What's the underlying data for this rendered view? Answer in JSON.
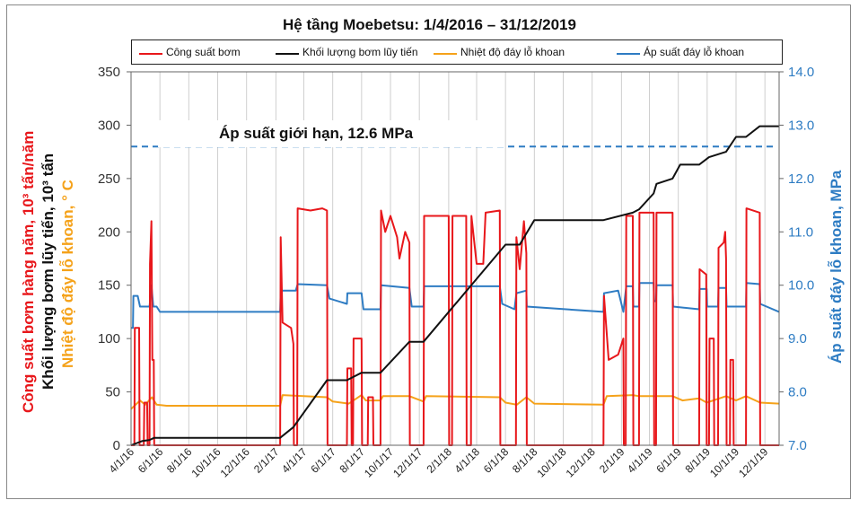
{
  "title": "Hệ tầng Moebetsu: 1/4/2016 – 31/12/2019",
  "annotation": "Áp suất giới hạn, 12.6 MPa",
  "left_axis_labels": [
    {
      "text": "Công suất bơm hàng năm, 10³ tấn/năm",
      "color": "#e8171b"
    },
    {
      "text": "Khối lượng bơm lũy tiến, 10³ tấn",
      "color": "#111111"
    },
    {
      "text": "Nhiệt độ đáy lỗ khoan, ° C",
      "color": "#f5a21a"
    }
  ],
  "right_axis_label": {
    "text": "Áp suất đáy lỗ khoan, MPa",
    "color": "#2e7cc3"
  },
  "legend": [
    {
      "label": "Công suất bơm",
      "color": "#e8171b"
    },
    {
      "label": "Khối lượng bơm lũy tiến",
      "color": "#111111"
    },
    {
      "label": "Nhiệt độ đáy lỗ khoan",
      "color": "#f5a21a"
    },
    {
      "label": "Áp suất đáy lỗ khoan",
      "color": "#2e7cc3"
    }
  ],
  "chart_data": {
    "type": "line",
    "title": "Hệ tầng Moebetsu: 1/4/2016 – 31/12/2019",
    "x_ticks": [
      "4/1/16",
      "6/1/16",
      "8/1/16",
      "10/1/16",
      "12/1/16",
      "2/1/17",
      "4/1/17",
      "6/1/17",
      "8/1/17",
      "10/1/17",
      "12/1/17",
      "2/1/18",
      "4/1/18",
      "6/1/18",
      "8/1/18",
      "10/1/18",
      "12/1/18",
      "2/1/19",
      "4/1/19",
      "6/1/19",
      "8/1/19",
      "10/1/19",
      "12/1/19"
    ],
    "xlim": [
      "2016-04-01",
      "2019-12-31"
    ],
    "y_left": {
      "ticks": [
        0,
        50,
        100,
        150,
        200,
        250,
        300,
        350
      ],
      "ylim": [
        0,
        350
      ]
    },
    "y_right": {
      "ticks": [
        "7.0",
        "8.0",
        "9.0",
        "10.0",
        "11.0",
        "12.0",
        "13.0",
        "14.0"
      ],
      "ylim": [
        7,
        14
      ]
    },
    "grid": "vertical",
    "limit_line": {
      "value": 12.6,
      "axis": "right",
      "style": "dashed",
      "color": "#2e7cc3"
    },
    "series": [
      {
        "name": "Công suất bơm",
        "color": "#e8171b",
        "axis": "left",
        "points": [
          [
            "2016-04-01",
            0
          ],
          [
            "2016-04-08",
            0
          ],
          [
            "2016-04-09",
            110
          ],
          [
            "2016-04-18",
            110
          ],
          [
            "2016-04-19",
            0
          ],
          [
            "2016-04-28",
            0
          ],
          [
            "2016-04-29",
            40
          ],
          [
            "2016-05-05",
            40
          ],
          [
            "2016-05-06",
            0
          ],
          [
            "2016-05-10",
            0
          ],
          [
            "2016-05-11",
            170
          ],
          [
            "2016-05-14",
            210
          ],
          [
            "2016-05-16",
            80
          ],
          [
            "2016-05-19",
            80
          ],
          [
            "2016-05-20",
            0
          ],
          [
            "2017-02-10",
            0
          ],
          [
            "2017-02-11",
            195
          ],
          [
            "2017-02-15",
            115
          ],
          [
            "2017-03-05",
            110
          ],
          [
            "2017-03-10",
            95
          ],
          [
            "2017-03-11",
            0
          ],
          [
            "2017-03-18",
            0
          ],
          [
            "2017-03-19",
            222
          ],
          [
            "2017-04-15",
            220
          ],
          [
            "2017-05-10",
            222
          ],
          [
            "2017-05-20",
            220
          ],
          [
            "2017-05-21",
            0
          ],
          [
            "2017-07-01",
            0
          ],
          [
            "2017-07-02",
            72
          ],
          [
            "2017-07-10",
            72
          ],
          [
            "2017-07-11",
            0
          ],
          [
            "2017-07-14",
            0
          ],
          [
            "2017-07-15",
            100
          ],
          [
            "2017-08-01",
            100
          ],
          [
            "2017-08-02",
            0
          ],
          [
            "2017-08-14",
            0
          ],
          [
            "2017-08-15",
            45
          ],
          [
            "2017-08-25",
            45
          ],
          [
            "2017-08-26",
            0
          ],
          [
            "2017-09-10",
            0
          ],
          [
            "2017-09-11",
            220
          ],
          [
            "2017-09-20",
            200
          ],
          [
            "2017-10-01",
            215
          ],
          [
            "2017-10-15",
            195
          ],
          [
            "2017-10-20",
            175
          ],
          [
            "2017-11-01",
            200
          ],
          [
            "2017-11-10",
            190
          ],
          [
            "2017-11-11",
            0
          ],
          [
            "2017-12-10",
            0
          ],
          [
            "2017-12-11",
            215
          ],
          [
            "2018-01-15",
            215
          ],
          [
            "2018-02-01",
            215
          ],
          [
            "2018-02-02",
            0
          ],
          [
            "2018-02-08",
            0
          ],
          [
            "2018-02-09",
            215
          ],
          [
            "2018-03-10",
            215
          ],
          [
            "2018-03-11",
            0
          ],
          [
            "2018-03-20",
            0
          ],
          [
            "2018-03-21",
            215
          ],
          [
            "2018-04-01",
            170
          ],
          [
            "2018-04-15",
            170
          ],
          [
            "2018-04-20",
            218
          ],
          [
            "2018-05-20",
            220
          ],
          [
            "2018-05-21",
            0
          ],
          [
            "2018-06-23",
            0
          ],
          [
            "2018-06-24",
            195
          ],
          [
            "2018-07-01",
            165
          ],
          [
            "2018-07-10",
            210
          ],
          [
            "2018-07-15",
            180
          ],
          [
            "2018-07-16",
            0
          ],
          [
            "2018-12-25",
            0
          ],
          [
            "2018-12-26",
            140
          ],
          [
            "2019-01-05",
            80
          ],
          [
            "2019-01-25",
            85
          ],
          [
            "2019-02-05",
            100
          ],
          [
            "2019-02-06",
            0
          ],
          [
            "2019-02-10",
            0
          ],
          [
            "2019-02-11",
            215
          ],
          [
            "2019-02-25",
            215
          ],
          [
            "2019-02-26",
            0
          ],
          [
            "2019-03-10",
            0
          ],
          [
            "2019-03-11",
            218
          ],
          [
            "2019-04-10",
            218
          ],
          [
            "2019-04-11",
            0
          ],
          [
            "2019-04-15",
            0
          ],
          [
            "2019-04-16",
            218
          ],
          [
            "2019-05-20",
            218
          ],
          [
            "2019-05-21",
            0
          ],
          [
            "2019-07-15",
            0
          ],
          [
            "2019-07-16",
            165
          ],
          [
            "2019-07-30",
            160
          ],
          [
            "2019-07-31",
            0
          ],
          [
            "2019-08-05",
            0
          ],
          [
            "2019-08-06",
            100
          ],
          [
            "2019-08-15",
            100
          ],
          [
            "2019-08-16",
            0
          ],
          [
            "2019-08-24",
            0
          ],
          [
            "2019-08-25",
            185
          ],
          [
            "2019-09-05",
            190
          ],
          [
            "2019-09-08",
            200
          ],
          [
            "2019-09-10",
            175
          ],
          [
            "2019-09-11",
            0
          ],
          [
            "2019-09-18",
            0
          ],
          [
            "2019-09-19",
            80
          ],
          [
            "2019-09-25",
            80
          ],
          [
            "2019-09-26",
            0
          ],
          [
            "2019-10-22",
            0
          ],
          [
            "2019-10-23",
            222
          ],
          [
            "2019-11-20",
            218
          ],
          [
            "2019-11-21",
            0
          ],
          [
            "2019-12-31",
            0
          ]
        ]
      },
      {
        "name": "Khối lượng bơm lũy tiến",
        "color": "#111111",
        "axis": "left",
        "points": [
          [
            "2016-04-01",
            0
          ],
          [
            "2016-04-25",
            4
          ],
          [
            "2016-05-10",
            5
          ],
          [
            "2016-05-20",
            7
          ],
          [
            "2017-02-10",
            7
          ],
          [
            "2017-03-10",
            17
          ],
          [
            "2017-05-20",
            61
          ],
          [
            "2017-07-01",
            61
          ],
          [
            "2017-08-01",
            68
          ],
          [
            "2017-09-10",
            68
          ],
          [
            "2017-11-10",
            97
          ],
          [
            "2017-12-10",
            97
          ],
          [
            "2018-06-01",
            188
          ],
          [
            "2018-07-01",
            188
          ],
          [
            "2018-08-01",
            211
          ],
          [
            "2018-12-25",
            211
          ],
          [
            "2019-02-25",
            218
          ],
          [
            "2019-03-10",
            221
          ],
          [
            "2019-04-10",
            236
          ],
          [
            "2019-04-16",
            245
          ],
          [
            "2019-05-20",
            250
          ],
          [
            "2019-06-05",
            263
          ],
          [
            "2019-07-15",
            263
          ],
          [
            "2019-08-05",
            270
          ],
          [
            "2019-09-10",
            275
          ],
          [
            "2019-10-01",
            289
          ],
          [
            "2019-10-22",
            289
          ],
          [
            "2019-11-20",
            299
          ],
          [
            "2019-12-31",
            299
          ]
        ]
      },
      {
        "name": "Nhiệt độ đáy lỗ khoan",
        "color": "#f5a21a",
        "axis": "left",
        "points": [
          [
            "2016-04-01",
            34
          ],
          [
            "2016-04-20",
            42
          ],
          [
            "2016-05-01",
            38
          ],
          [
            "2016-05-15",
            45
          ],
          [
            "2016-05-25",
            38
          ],
          [
            "2016-06-15",
            37
          ],
          [
            "2017-02-10",
            37
          ],
          [
            "2017-02-15",
            47
          ],
          [
            "2017-05-20",
            45
          ],
          [
            "2017-06-01",
            41
          ],
          [
            "2017-07-05",
            39
          ],
          [
            "2017-08-01",
            47
          ],
          [
            "2017-08-10",
            42
          ],
          [
            "2017-09-10",
            42
          ],
          [
            "2017-09-15",
            46
          ],
          [
            "2017-11-10",
            46
          ],
          [
            "2017-12-10",
            41
          ],
          [
            "2017-12-15",
            46
          ],
          [
            "2018-05-20",
            45
          ],
          [
            "2018-06-01",
            40
          ],
          [
            "2018-06-25",
            38
          ],
          [
            "2018-07-15",
            45
          ],
          [
            "2018-08-01",
            39
          ],
          [
            "2018-12-25",
            38
          ],
          [
            "2019-01-01",
            46
          ],
          [
            "2019-02-25",
            47
          ],
          [
            "2019-03-10",
            46
          ],
          [
            "2019-05-20",
            46
          ],
          [
            "2019-06-10",
            42
          ],
          [
            "2019-07-15",
            44
          ],
          [
            "2019-07-31",
            40
          ],
          [
            "2019-09-10",
            46
          ],
          [
            "2019-10-01",
            42
          ],
          [
            "2019-10-22",
            46
          ],
          [
            "2019-11-21",
            40
          ],
          [
            "2019-12-31",
            39
          ]
        ]
      },
      {
        "name": "Áp suất đáy lỗ khoan",
        "color": "#2e7cc3",
        "axis": "right",
        "points": [
          [
            "2016-04-01",
            9.2
          ],
          [
            "2016-04-05",
            9.2
          ],
          [
            "2016-04-06",
            9.8
          ],
          [
            "2016-04-15",
            9.8
          ],
          [
            "2016-04-20",
            9.6
          ],
          [
            "2016-05-10",
            9.6
          ],
          [
            "2016-05-14",
            10.0
          ],
          [
            "2016-05-18",
            9.6
          ],
          [
            "2016-05-25",
            9.6
          ],
          [
            "2016-06-01",
            9.5
          ],
          [
            "2017-02-10",
            9.5
          ],
          [
            "2017-02-11",
            9.9
          ],
          [
            "2017-03-15",
            9.9
          ],
          [
            "2017-03-19",
            10.02
          ],
          [
            "2017-05-20",
            10.0
          ],
          [
            "2017-05-25",
            9.75
          ],
          [
            "2017-07-01",
            9.65
          ],
          [
            "2017-07-02",
            9.85
          ],
          [
            "2017-08-01",
            9.85
          ],
          [
            "2017-08-05",
            9.55
          ],
          [
            "2017-09-10",
            9.55
          ],
          [
            "2017-09-11",
            10.0
          ],
          [
            "2017-11-10",
            9.95
          ],
          [
            "2017-11-15",
            9.6
          ],
          [
            "2017-12-10",
            9.6
          ],
          [
            "2017-12-11",
            9.98
          ],
          [
            "2018-05-20",
            9.98
          ],
          [
            "2018-05-25",
            9.65
          ],
          [
            "2018-06-20",
            9.55
          ],
          [
            "2018-06-24",
            9.85
          ],
          [
            "2018-07-15",
            9.9
          ],
          [
            "2018-07-16",
            9.6
          ],
          [
            "2018-12-25",
            9.5
          ],
          [
            "2018-12-26",
            9.85
          ],
          [
            "2019-01-25",
            9.9
          ],
          [
            "2019-02-05",
            9.5
          ],
          [
            "2019-02-11",
            9.98
          ],
          [
            "2019-02-25",
            9.98
          ],
          [
            "2019-02-26",
            9.6
          ],
          [
            "2019-03-10",
            9.6
          ],
          [
            "2019-03-11",
            10.04
          ],
          [
            "2019-04-10",
            10.04
          ],
          [
            "2019-04-11",
            9.7
          ],
          [
            "2019-04-15",
            9.7
          ],
          [
            "2019-04-16",
            10.0
          ],
          [
            "2019-05-20",
            10.0
          ],
          [
            "2019-05-21",
            9.6
          ],
          [
            "2019-07-15",
            9.55
          ],
          [
            "2019-07-16",
            9.93
          ],
          [
            "2019-07-31",
            9.93
          ],
          [
            "2019-08-01",
            9.6
          ],
          [
            "2019-08-24",
            9.6
          ],
          [
            "2019-08-25",
            9.95
          ],
          [
            "2019-09-10",
            9.95
          ],
          [
            "2019-09-11",
            9.6
          ],
          [
            "2019-10-22",
            9.6
          ],
          [
            "2019-10-23",
            10.04
          ],
          [
            "2019-11-20",
            10.02
          ],
          [
            "2019-11-21",
            9.65
          ],
          [
            "2019-12-31",
            9.5
          ]
        ]
      }
    ]
  }
}
